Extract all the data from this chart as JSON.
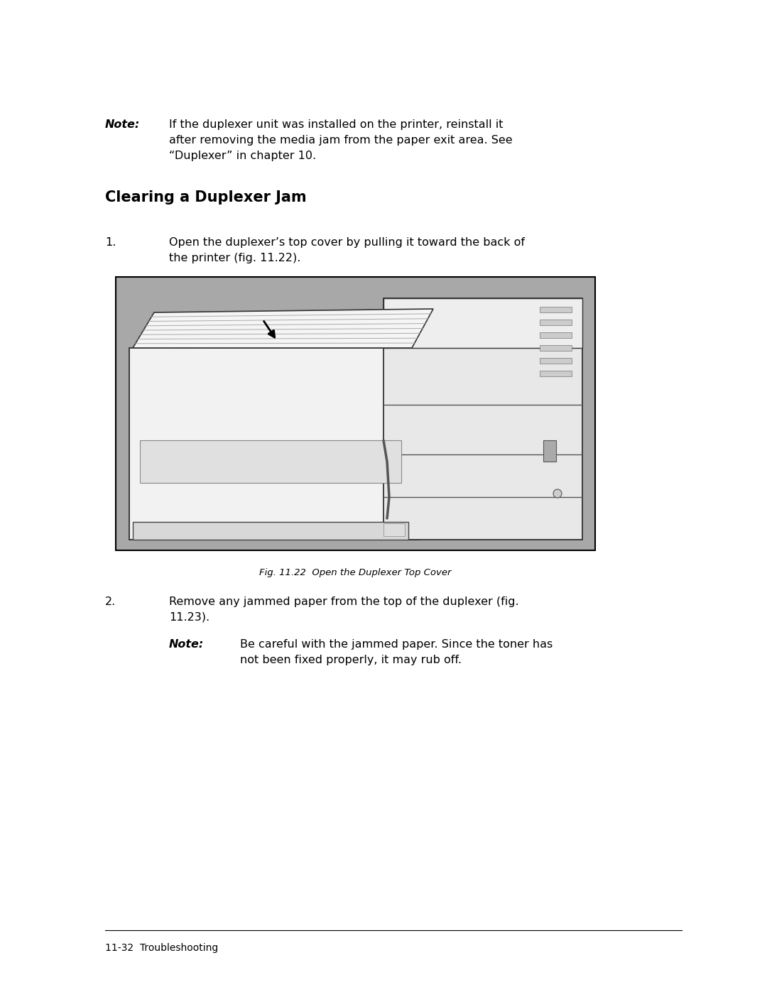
{
  "page_bg": "#ffffff",
  "fig_bg": "#a8a8a8",
  "fig_border": "#000000",
  "text_color": "#000000",
  "note_label": "Note:",
  "note_text_line1": "If the duplexer unit was installed on the printer, reinstall it",
  "note_text_line2": "after removing the media jam from the paper exit area. See",
  "note_text_line3": "“Duplexer” in chapter 10.",
  "section_title": "Clearing a Duplexer Jam",
  "step1_num": "1.",
  "step1_text_line1": "Open the duplexer’s top cover by pulling it toward the back of",
  "step1_text_line2": "the printer (fig. 11.22).",
  "fig_caption": "Fig. 11.22  Open the Duplexer Top Cover",
  "step2_num": "2.",
  "step2_text_line1": "Remove any jammed paper from the top of the duplexer (fig.",
  "step2_text_line2": "11.23).",
  "note2_label": "Note:",
  "note2_text_line1": "Be careful with the jammed paper. Since the toner has",
  "note2_text_line2": "not been fixed properly, it may rub off.",
  "footer_text": "11-32  Troubleshooting",
  "footer_line_color": "#000000",
  "font_size_body": 11.5,
  "font_size_note_label": 11.5,
  "font_size_section": 15,
  "font_size_footer": 10,
  "font_size_caption": 9.5
}
